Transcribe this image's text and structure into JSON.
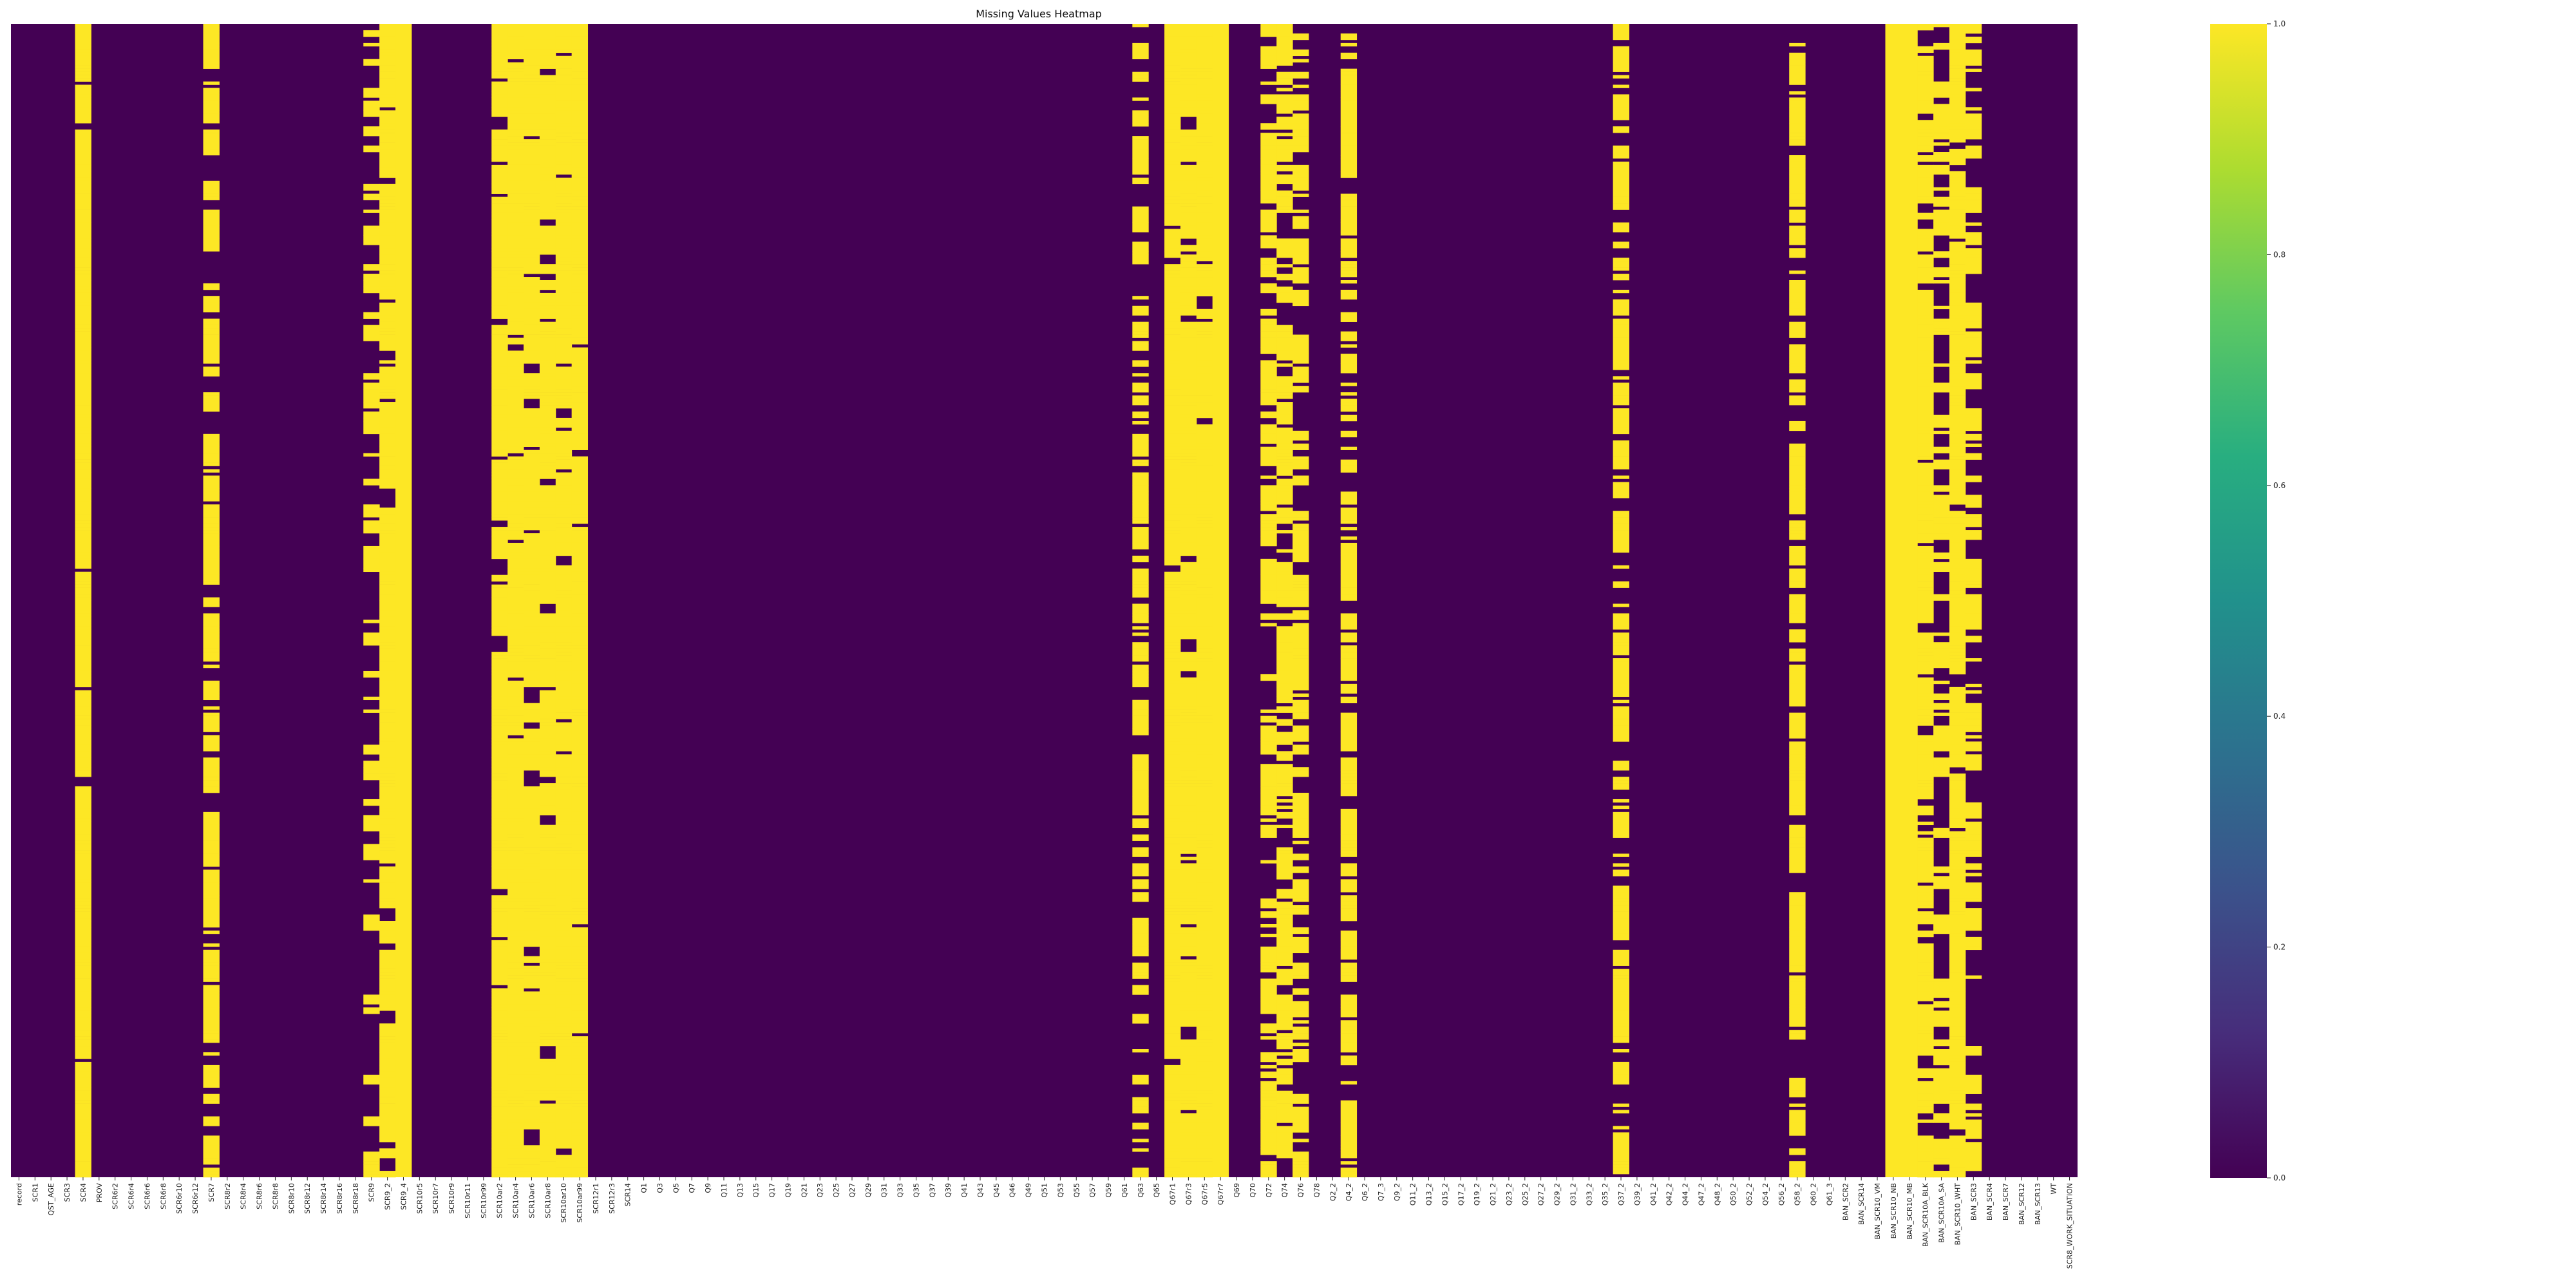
{
  "chart_data": {
    "type": "heatmap",
    "title": "Missing Values Heatmap",
    "colormap": "viridis",
    "colorbar": {
      "min": 0.0,
      "max": 1.0,
      "ticks": [
        "0.0",
        "0.2",
        "0.4",
        "0.6",
        "0.8",
        "1.0"
      ]
    },
    "x_tick_labels": [
      "record",
      "SCR1",
      "QST_AGE",
      "SCR3",
      "SCR4",
      "PROV",
      "SCR6r2",
      "SCR6r4",
      "SCR6r6",
      "SCR6r8",
      "SCR6r10",
      "SCR6r12",
      "SCR7",
      "SCR8r2",
      "SCR8r4",
      "SCR8r6",
      "SCR8r8",
      "SCR8r10",
      "SCR8r12",
      "SCR8r14",
      "SCR8r16",
      "SCR8r18",
      "SCR9",
      "SCR9_2",
      "SCR9_4",
      "SCR10r5",
      "SCR10r7",
      "SCR10r9",
      "SCR10r11",
      "SCR10r99",
      "SCR10ar2",
      "SCR10ar4",
      "SCR10ar6",
      "SCR10ar8",
      "SCR10ar10",
      "SCR10ar99",
      "SCR12r1",
      "SCR12r3",
      "SCR14",
      "Q1",
      "Q3",
      "Q5",
      "Q7",
      "Q9",
      "Q11",
      "Q13",
      "Q15",
      "Q17",
      "Q19",
      "Q21",
      "Q23",
      "Q25",
      "Q27",
      "Q29",
      "Q31",
      "Q33",
      "Q35",
      "Q37",
      "Q39",
      "Q41",
      "Q43",
      "Q45",
      "Q46",
      "Q49",
      "Q51",
      "Q53",
      "Q55",
      "Q57",
      "Q59",
      "Q61",
      "Q63",
      "Q65",
      "Q67r1",
      "Q67r3",
      "Q67r5",
      "Q67r7",
      "Q69",
      "Q70",
      "Q72",
      "Q74",
      "Q76",
      "Q78",
      "Q2_2",
      "Q4_2",
      "Q6_2",
      "Q7_3",
      "Q9_2",
      "Q11_2",
      "Q13_2",
      "Q15_2",
      "Q17_2",
      "Q19_2",
      "Q21_2",
      "Q23_2",
      "Q25_2",
      "Q27_2",
      "Q29_2",
      "Q31_2",
      "Q33_2",
      "Q35_2",
      "Q37_2",
      "Q39_2",
      "Q41_2",
      "Q42_2",
      "Q44_2",
      "Q47_2",
      "Q48_2",
      "Q50_2",
      "Q52_2",
      "Q54_2",
      "Q56_2",
      "Q58_2",
      "Q60_2",
      "Q61_3",
      "BAN_SCR2",
      "BAN_SCR14",
      "BAN_SCR10_VM",
      "BAN_SCR10_NB",
      "BAN_SCR10_MB",
      "BAN_SCR10A_BLK",
      "BAN_SCR10A_SA",
      "BAN_SCR10_WHT",
      "BAN_SCR3",
      "BAN_SCR4",
      "BAN_SCR7",
      "BAN_SCR12",
      "BAN_SCR13",
      "WT",
      "SCR8_WORK_SITUATION"
    ],
    "columns_missing_fraction": [
      0,
      0,
      0,
      0,
      0.95,
      0,
      0,
      0,
      0,
      0,
      0,
      0,
      0.75,
      0,
      0,
      0,
      0,
      0,
      0,
      0,
      0,
      0,
      0.4,
      0.95,
      1.0,
      0,
      0,
      0,
      0,
      0,
      0.95,
      0.95,
      0.95,
      0.95,
      0.95,
      0.95,
      0,
      0,
      0,
      0,
      0,
      0,
      0,
      0,
      0,
      0,
      0,
      0,
      0,
      0,
      0,
      0,
      0,
      0,
      0,
      0,
      0,
      0,
      0,
      0,
      0,
      0,
      0,
      0,
      0,
      0,
      0,
      0,
      0,
      0,
      0.6,
      0,
      0.95,
      0.95,
      0.95,
      1.0,
      0,
      0,
      0.6,
      0.6,
      0.6,
      0,
      0,
      0.7,
      0,
      0,
      0,
      0,
      0,
      0,
      0,
      0,
      0,
      0,
      0,
      0,
      0,
      0,
      0,
      0,
      0.75,
      0,
      0,
      0,
      0,
      0,
      0,
      0,
      0,
      0,
      0,
      0.75,
      0,
      0,
      0,
      0,
      0,
      1.0,
      1.0,
      0.85,
      0.45,
      0.95,
      0.6,
      0,
      0,
      0,
      0,
      0
    ],
    "xlabel": "",
    "ylabel": "",
    "grid": false
  }
}
